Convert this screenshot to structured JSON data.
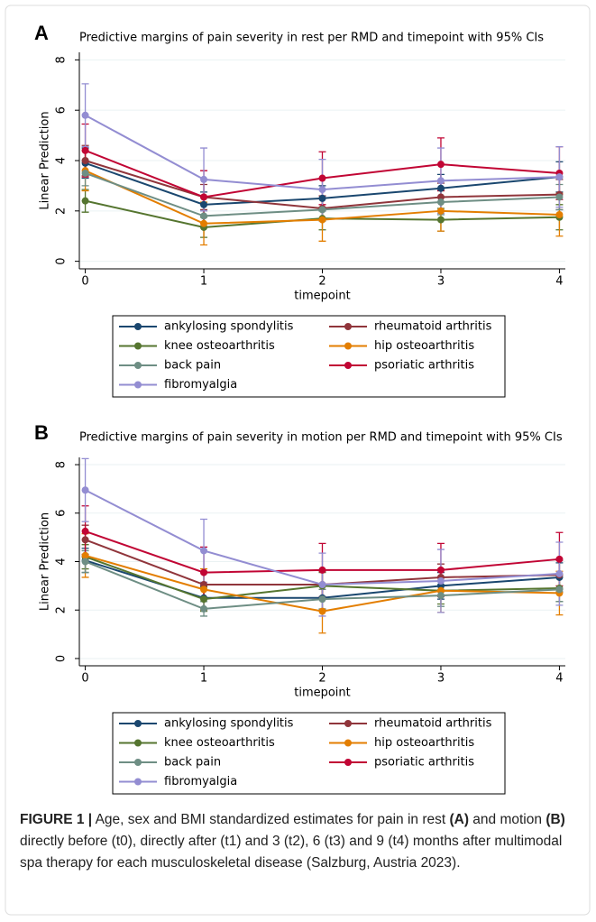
{
  "chart_data": [
    {
      "type": "line",
      "panel": "A",
      "title": "Predictive margins of pain severity in rest per RMD and timepoint with 95% CIs",
      "x_label": "timepoint",
      "y_label": "Linear Prediction",
      "x": [
        0,
        1,
        2,
        3,
        4
      ],
      "xlim": [
        -0.05,
        4.05
      ],
      "xticks": [
        0,
        1,
        2,
        3,
        4
      ],
      "ylim": [
        -0.3,
        8.3
      ],
      "yticks": [
        0,
        2,
        4,
        6,
        8
      ],
      "grid": true,
      "series": [
        {
          "name": "ankylosing spondylitis",
          "color": "#1a476f",
          "values": [
            3.9,
            2.25,
            2.5,
            2.9,
            3.35
          ],
          "errors": [
            0.6,
            0.5,
            0.5,
            0.55,
            0.6
          ]
        },
        {
          "name": "rheumatoid arthritis",
          "color": "#90353b",
          "values": [
            4.0,
            2.55,
            2.1,
            2.55,
            2.65
          ],
          "errors": [
            0.6,
            0.5,
            0.5,
            0.55,
            0.6
          ]
        },
        {
          "name": "knee osteoarthritis",
          "color": "#55752f",
          "values": [
            2.4,
            1.35,
            1.7,
            1.65,
            1.75
          ],
          "errors": [
            0.45,
            0.4,
            0.45,
            0.45,
            0.5
          ]
        },
        {
          "name": "hip osteoarthritis",
          "color": "#e37e00",
          "values": [
            3.6,
            1.5,
            1.65,
            2.0,
            1.85
          ],
          "errors": [
            0.8,
            0.85,
            0.85,
            0.8,
            0.85
          ]
        },
        {
          "name": "back pain",
          "color": "#6e8e84",
          "values": [
            3.5,
            1.8,
            2.05,
            2.35,
            2.55
          ],
          "errors": [
            0.5,
            0.45,
            0.45,
            0.5,
            0.5
          ]
        },
        {
          "name": "psoriatic arthritis",
          "color": "#c10534",
          "values": [
            4.4,
            2.55,
            3.3,
            3.85,
            3.5
          ],
          "errors": [
            1.05,
            1.05,
            1.05,
            1.05,
            1.05
          ]
        },
        {
          "name": "fibromyalgia",
          "color": "#938dd2",
          "values": [
            5.8,
            3.25,
            2.85,
            3.2,
            3.35
          ],
          "errors": [
            1.25,
            1.25,
            1.2,
            1.3,
            1.2
          ]
        }
      ]
    },
    {
      "type": "line",
      "panel": "B",
      "title": "Predictive margins of pain severity in motion per RMD and timepoint with 95% CIs",
      "x_label": "timepoint",
      "y_label": "Linear Prediction",
      "x": [
        0,
        1,
        2,
        3,
        4
      ],
      "xlim": [
        -0.05,
        4.05
      ],
      "xticks": [
        0,
        1,
        2,
        3,
        4
      ],
      "ylim": [
        -0.3,
        8.3
      ],
      "yticks": [
        0,
        2,
        4,
        6,
        8
      ],
      "grid": true,
      "series": [
        {
          "name": "ankylosing spondylitis",
          "color": "#1a476f",
          "values": [
            4.05,
            2.5,
            2.5,
            3.0,
            3.35
          ],
          "errors": [
            0.5,
            0.5,
            0.5,
            0.55,
            0.6
          ]
        },
        {
          "name": "rheumatoid arthritis",
          "color": "#90353b",
          "values": [
            4.9,
            3.05,
            3.05,
            3.35,
            3.45
          ],
          "errors": [
            0.6,
            0.55,
            0.55,
            0.55,
            0.6
          ]
        },
        {
          "name": "knee osteoarthritis",
          "color": "#55752f",
          "values": [
            4.2,
            2.45,
            3.0,
            2.8,
            2.9
          ],
          "errors": [
            0.5,
            0.5,
            0.55,
            0.55,
            0.55
          ]
        },
        {
          "name": "hip osteoarthritis",
          "color": "#e37e00",
          "values": [
            4.25,
            2.85,
            1.95,
            2.8,
            2.7
          ],
          "errors": [
            0.9,
            0.85,
            0.9,
            0.9,
            0.9
          ]
        },
        {
          "name": "back pain",
          "color": "#6e8e84",
          "values": [
            4.0,
            2.05,
            2.45,
            2.6,
            2.85
          ],
          "errors": [
            0.45,
            0.3,
            0.4,
            0.45,
            0.5
          ]
        },
        {
          "name": "psoriatic arthritis",
          "color": "#c10534",
          "values": [
            5.25,
            3.55,
            3.65,
            3.65,
            4.1
          ],
          "errors": [
            1.05,
            1.05,
            1.1,
            1.1,
            1.1
          ]
        },
        {
          "name": "fibromyalgia",
          "color": "#938dd2",
          "values": [
            6.95,
            4.45,
            3.05,
            3.2,
            3.5
          ],
          "errors": [
            1.3,
            1.3,
            1.3,
            1.3,
            1.3
          ]
        }
      ]
    }
  ],
  "caption": [
    {
      "text": "FIGURE 1 |",
      "bold": true
    },
    {
      "text": " Age, sex and BMI standardized estimates for pain in rest ",
      "bold": false
    },
    {
      "text": "(A)",
      "bold": true
    },
    {
      "text": " and motion ",
      "bold": false
    },
    {
      "text": "(B)",
      "bold": true
    },
    {
      "text": " directly before (t0), directly after (t1) and 3 (t2), 6 (t3) and 9 (t4) months after multimodal spa therapy for each musculoskeletal disease (Salzburg, Austria 2023).",
      "bold": false
    }
  ]
}
